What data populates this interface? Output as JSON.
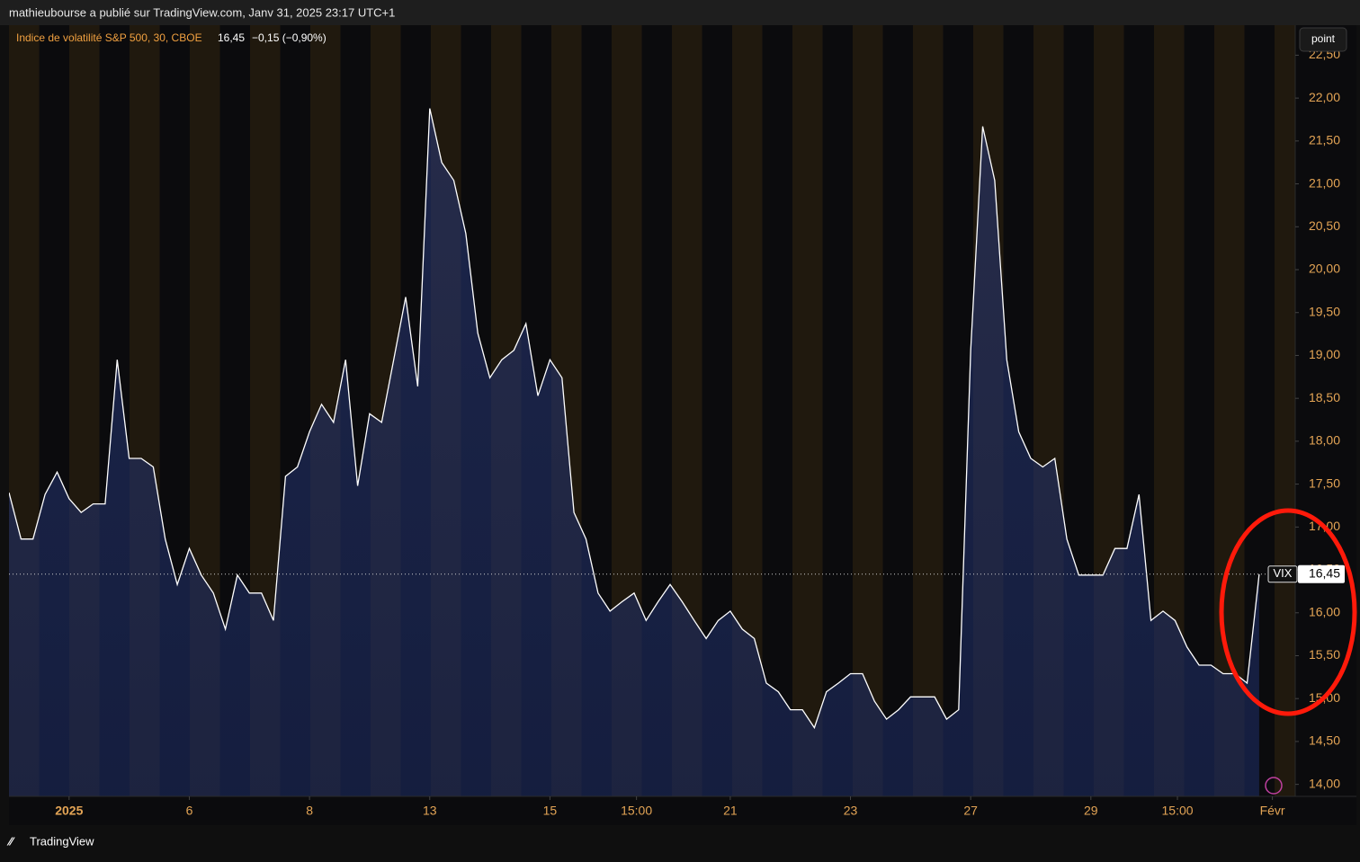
{
  "header": "mathieubourse a publié sur TradingView.com, Janv 31, 2025 23:17 UTC+1",
  "footer": "TradingView",
  "scale_button": "point",
  "chart_data": {
    "type": "area",
    "series_name": "Indice de volatilité S&P 500, 30, CBOE",
    "symbol": "VIX",
    "last_value": {
      "value": 16.45,
      "label": "16,45"
    },
    "change": "−0,15 (−0,90%)",
    "color": "#ffffff",
    "values": [
      17.4,
      16.86,
      16.86,
      17.38,
      17.64,
      17.33,
      17.17,
      17.27,
      17.27,
      18.95,
      17.8,
      17.8,
      17.7,
      16.86,
      16.33,
      16.75,
      16.44,
      16.23,
      15.81,
      16.44,
      16.23,
      16.23,
      15.91,
      17.59,
      17.7,
      18.11,
      18.43,
      18.22,
      18.95,
      17.48,
      18.32,
      18.22,
      18.95,
      19.68,
      18.64,
      21.88,
      21.25,
      21.04,
      20.42,
      19.26,
      18.74,
      18.95,
      19.06,
      19.37,
      18.53,
      18.95,
      18.74,
      17.17,
      16.86,
      16.23,
      16.02,
      16.13,
      16.23,
      15.91,
      16.13,
      16.33,
      16.13,
      15.91,
      15.7,
      15.91,
      16.02,
      15.81,
      15.7,
      15.18,
      15.08,
      14.87,
      14.87,
      14.66,
      15.08,
      15.18,
      15.29,
      15.29,
      14.97,
      14.76,
      14.87,
      15.02,
      15.02,
      15.02,
      14.76,
      14.87,
      19.06,
      21.67,
      21.04,
      18.95,
      18.11,
      17.8,
      17.7,
      17.8,
      16.86,
      16.44,
      16.44,
      16.44,
      16.75,
      16.75,
      17.38,
      15.91,
      16.02,
      15.91,
      15.6,
      15.39,
      15.39,
      15.29,
      15.29,
      15.18,
      16.45
    ],
    "xlim": [
      0,
      107
    ],
    "xticks": [
      {
        "value": 5,
        "label": "2025"
      },
      {
        "value": 15,
        "label": "6"
      },
      {
        "value": 25,
        "label": "8"
      },
      {
        "value": 35,
        "label": "13"
      },
      {
        "value": 45,
        "label": "15"
      },
      {
        "value": 52.2,
        "label": "15:00"
      },
      {
        "value": 60,
        "label": "21"
      },
      {
        "value": 70,
        "label": "23"
      },
      {
        "value": 80,
        "label": "27"
      },
      {
        "value": 90,
        "label": "29"
      },
      {
        "value": 97.2,
        "label": "15:00"
      },
      {
        "value": 105.1,
        "label": "Févr"
      }
    ],
    "ylim": [
      13.86,
      22.85
    ],
    "yticks": [
      {
        "value": 14,
        "label": "14,00"
      },
      {
        "value": 14.5,
        "label": "14,50"
      },
      {
        "value": 15,
        "label": "15,00"
      },
      {
        "value": 15.5,
        "label": "15,50"
      },
      {
        "value": 16,
        "label": "16,00"
      },
      {
        "value": 16.5,
        "label": "16,50"
      },
      {
        "value": 17,
        "label": "17,00"
      },
      {
        "value": 17.5,
        "label": "17,50"
      },
      {
        "value": 18,
        "label": "18,00"
      },
      {
        "value": 18.5,
        "label": "18,50"
      },
      {
        "value": 19,
        "label": "19,00"
      },
      {
        "value": 19.5,
        "label": "19,50"
      },
      {
        "value": 20,
        "label": "20,00"
      },
      {
        "value": 20.5,
        "label": "20,50"
      },
      {
        "value": 21,
        "label": "21,00"
      },
      {
        "value": 21.5,
        "label": "21,50"
      },
      {
        "value": 22,
        "label": "22,00"
      },
      {
        "value": 22.5,
        "label": "22,50"
      }
    ]
  }
}
